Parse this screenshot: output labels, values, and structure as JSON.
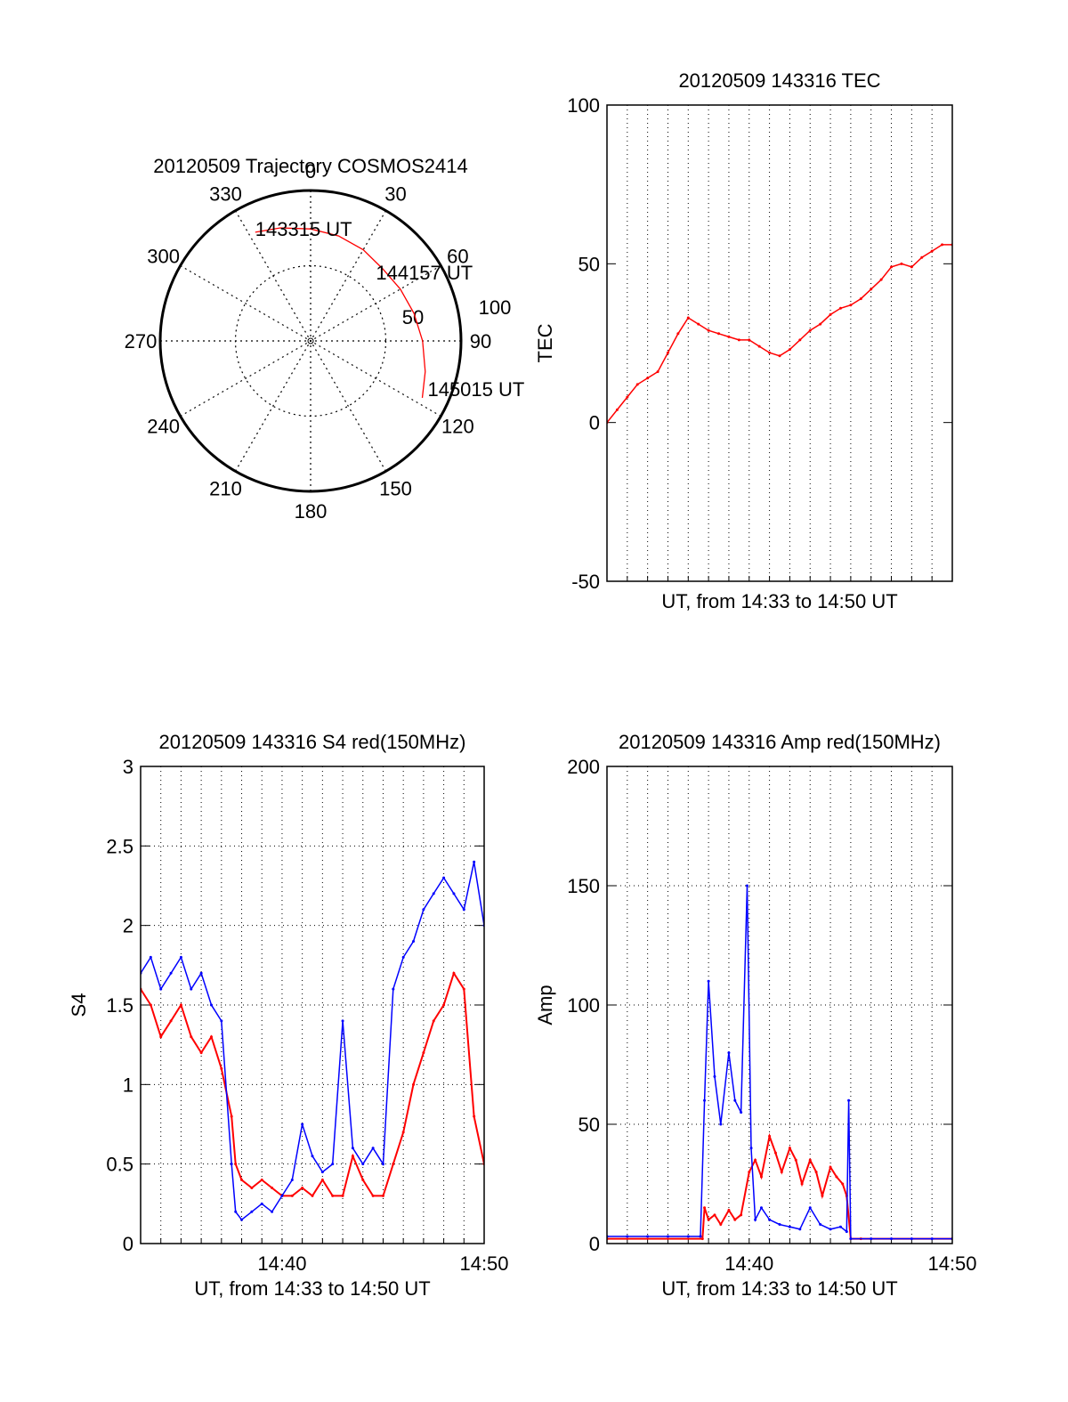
{
  "chart_data": [
    {
      "type": "polar",
      "title": "20120509 Trajectory COSMOS2414",
      "azimuth_labels": [
        "0",
        "30",
        "60",
        "90",
        "120",
        "150",
        "180",
        "210",
        "240",
        "270",
        "300",
        "330"
      ],
      "radial_labels": [
        "50",
        "100"
      ],
      "trajectory": [
        {
          "az": 333,
          "el": 17
        },
        {
          "az": 345,
          "el": 20
        },
        {
          "az": 0,
          "el": 23
        },
        {
          "az": 15,
          "el": 25
        },
        {
          "az": 30,
          "el": 27
        },
        {
          "az": 45,
          "el": 29
        },
        {
          "az": 60,
          "el": 28
        },
        {
          "az": 75,
          "el": 26
        },
        {
          "az": 90,
          "el": 23
        },
        {
          "az": 105,
          "el": 19
        },
        {
          "az": 117,
          "el": 15
        }
      ],
      "annotations": [
        {
          "text": "143315 UT",
          "az": 333,
          "el": 17
        },
        {
          "text": "144157 UT",
          "az": 55,
          "el": 28
        },
        {
          "text": "145015 UT",
          "az": 117,
          "el": 15
        }
      ],
      "color": "#ff0000"
    },
    {
      "type": "line",
      "title": "20120509 143316 TEC",
      "ylabel": "TEC",
      "xlabel": "UT, from 14:33 to 14:50 UT",
      "ylim": [
        -50,
        100
      ],
      "yticks": [
        "-50",
        "0",
        "50",
        "100"
      ],
      "x": [
        0,
        0.5,
        1,
        1.5,
        2,
        2.5,
        3,
        3.5,
        4,
        4.5,
        5,
        5.5,
        6,
        6.5,
        7,
        7.5,
        8,
        8.5,
        9,
        9.5,
        10,
        10.5,
        11,
        11.5,
        12,
        12.5,
        13,
        13.5,
        14,
        14.5,
        15,
        15.5,
        16,
        16.5,
        17
      ],
      "y": [
        0,
        4,
        8,
        12,
        14,
        16,
        22,
        28,
        33,
        31,
        29,
        28,
        27,
        26,
        26,
        24,
        22,
        21,
        23,
        26,
        29,
        31,
        34,
        36,
        37,
        39,
        42,
        45,
        49,
        50,
        49,
        52,
        54,
        56,
        56
      ],
      "grid": "vertical",
      "color": "#ff0000"
    },
    {
      "type": "line",
      "title": "20120509 143316 S4 red(150MHz)",
      "ylabel": "S4",
      "xlabel": "UT, from 14:33 to 14:50 UT",
      "ylim": [
        0,
        3
      ],
      "yticks": [
        "0",
        "0.5",
        "1",
        "1.5",
        "2",
        "2.5",
        "3"
      ],
      "xticks": [
        {
          "at": 7,
          "label": "14:40"
        },
        {
          "at": 17,
          "label": "14:50"
        }
      ],
      "grid": "both",
      "series": [
        {
          "color": "#ff0000",
          "x": [
            0,
            0.5,
            1,
            1.5,
            2,
            2.5,
            3,
            3.5,
            4,
            4.5,
            4.7,
            5,
            5.5,
            6,
            6.5,
            7,
            7.5,
            8,
            8.5,
            9,
            9.5,
            10,
            10.5,
            11,
            11.5,
            12,
            12.5,
            13,
            13.5,
            14,
            14.5,
            15,
            15.5,
            16,
            16.5,
            17
          ],
          "y": [
            1.6,
            1.5,
            1.3,
            1.4,
            1.5,
            1.3,
            1.2,
            1.3,
            1.1,
            0.8,
            0.5,
            0.4,
            0.35,
            0.4,
            0.35,
            0.3,
            0.3,
            0.35,
            0.3,
            0.4,
            0.3,
            0.3,
            0.55,
            0.4,
            0.3,
            0.3,
            0.5,
            0.7,
            1.0,
            1.2,
            1.4,
            1.5,
            1.7,
            1.6,
            0.8,
            0.5
          ]
        },
        {
          "color": "#0000ff",
          "x": [
            0,
            0.5,
            1,
            1.5,
            2,
            2.5,
            3,
            3.5,
            4,
            4.5,
            4.7,
            5,
            5.5,
            6,
            6.5,
            7,
            7.5,
            8,
            8.5,
            9,
            9.5,
            10,
            10.5,
            11,
            11.5,
            12,
            12.5,
            13,
            13.5,
            14,
            14.5,
            15,
            15.5,
            16,
            16.5,
            17
          ],
          "y": [
            1.7,
            1.8,
            1.6,
            1.7,
            1.8,
            1.6,
            1.7,
            1.5,
            1.4,
            0.5,
            0.2,
            0.15,
            0.2,
            0.25,
            0.2,
            0.3,
            0.4,
            0.75,
            0.55,
            0.45,
            0.5,
            1.4,
            0.6,
            0.5,
            0.6,
            0.5,
            1.6,
            1.8,
            1.9,
            2.1,
            2.2,
            2.3,
            2.2,
            2.1,
            2.4,
            2.0
          ]
        }
      ]
    },
    {
      "type": "line",
      "title": "20120509 143316 Amp red(150MHz)",
      "ylabel": "Amp",
      "xlabel": "UT, from 14:33 to 14:50 UT",
      "ylim": [
        0,
        200
      ],
      "yticks": [
        "0",
        "50",
        "100",
        "150",
        "200"
      ],
      "xticks": [
        {
          "at": 7,
          "label": "14:40"
        },
        {
          "at": 17,
          "label": "14:50"
        }
      ],
      "grid": "both",
      "series": [
        {
          "color": "#ff0000",
          "x": [
            0,
            4.7,
            4.8,
            5,
            5.3,
            5.6,
            6,
            6.3,
            6.6,
            7,
            7.3,
            7.6,
            8,
            8.3,
            8.6,
            9,
            9.3,
            9.6,
            10,
            10.3,
            10.6,
            11,
            11.3,
            11.6,
            11.8,
            12,
            12.5,
            17
          ],
          "y": [
            2,
            2,
            15,
            10,
            12,
            8,
            14,
            10,
            12,
            30,
            35,
            28,
            45,
            38,
            30,
            40,
            35,
            25,
            35,
            30,
            20,
            32,
            28,
            25,
            20,
            2,
            2,
            2
          ]
        },
        {
          "color": "#0000ff",
          "x": [
            0,
            1,
            2,
            3,
            4,
            4.6,
            4.8,
            5,
            5.3,
            5.6,
            6,
            6.3,
            6.6,
            6.9,
            7.1,
            7.3,
            7.6,
            8,
            8.5,
            9,
            9.5,
            10,
            10.5,
            11,
            11.5,
            11.8,
            11.9,
            12,
            13,
            14,
            15,
            16,
            17
          ],
          "y": [
            3,
            3,
            3,
            3,
            3,
            3,
            60,
            110,
            70,
            50,
            80,
            60,
            55,
            150,
            40,
            10,
            15,
            10,
            8,
            7,
            6,
            15,
            8,
            6,
            7,
            5,
            60,
            2,
            2,
            2,
            2,
            2,
            2
          ]
        }
      ]
    }
  ]
}
